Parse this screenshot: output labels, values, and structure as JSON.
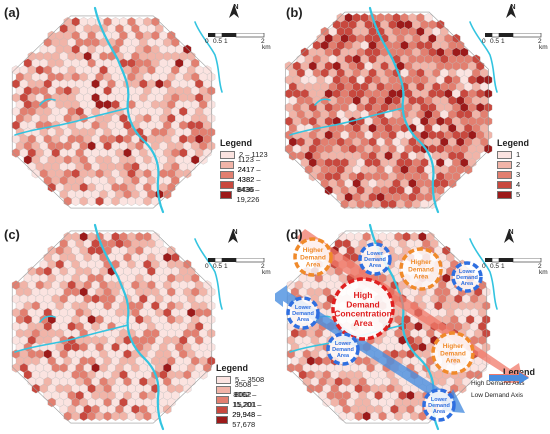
{
  "panels": [
    {
      "label": "(a)"
    },
    {
      "label": "(b)"
    },
    {
      "label": "(c)"
    },
    {
      "label": "(d)"
    }
  ],
  "north_label": "N",
  "scale": {
    "ticks": [
      "0",
      "0.5",
      "1",
      "2"
    ],
    "unit": "km"
  },
  "legend_a": {
    "title": "Legend",
    "classes": [
      "2 – 1123",
      "1123 – 2417",
      "2417 – 4382",
      "4382 – 8436",
      "8436 – 19,226"
    ],
    "colors": [
      "#fbe3e0",
      "#f1b4a8",
      "#e27f70",
      "#c8483e",
      "#9c1a1a"
    ]
  },
  "legend_b": {
    "title": "Legend",
    "classes": [
      "1",
      "2",
      "3",
      "4",
      "5"
    ],
    "colors": [
      "#fbe3e0",
      "#f1b4a8",
      "#e27f70",
      "#c8483e",
      "#9c1a1a"
    ]
  },
  "legend_c": {
    "title": "Legend",
    "classes": [
      "5 – 3508",
      "3508 – 8062",
      "8062 – 15,201",
      "15,201 – 29,948",
      "29,948 – 57,678"
    ],
    "colors": [
      "#fbe3e0",
      "#f1b4a8",
      "#e27f70",
      "#c8483e",
      "#9c1a1a"
    ]
  },
  "legend_d": {
    "title": "Legend",
    "high_axis": "High Demand Axis",
    "low_axis": "Low Demand Axis"
  },
  "annotations": {
    "high_concentration": [
      "High",
      "Demand",
      "Concentration",
      "Area"
    ],
    "higher_demand": [
      "Higher",
      "Demand",
      "Area"
    ],
    "lower_demand": [
      "Lower",
      "Demand",
      "Area"
    ]
  },
  "colors": {
    "river": "#33c4e0",
    "high_axis": "#f07a6a",
    "low_axis": "#4a8ee0",
    "higher_ring": "#f08a2a",
    "lower_ring": "#2f6fe0",
    "concentration_ring": "#e02020"
  }
}
